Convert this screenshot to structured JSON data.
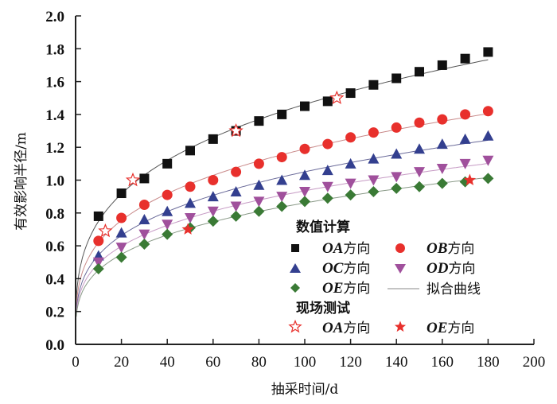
{
  "chart_data": {
    "type": "scatter",
    "title": "",
    "xlabel": "抽采时间/d",
    "ylabel": "有效影响半径/m",
    "xlim": [
      0,
      200
    ],
    "ylim": [
      0,
      2.0
    ],
    "xticks": [
      "0",
      "20",
      "40",
      "60",
      "80",
      "100",
      "120",
      "140",
      "160",
      "180",
      "200"
    ],
    "yticks": [
      "0.0",
      "0.2",
      "0.4",
      "0.6",
      "0.8",
      "1.0",
      "1.2",
      "1.4",
      "1.6",
      "1.8",
      "2.0"
    ],
    "grid": false,
    "legend_position": "bottom-right",
    "legend": {
      "group1_title": "数值计算",
      "group2_title": "现场测试",
      "fit_label": "拟合曲线"
    },
    "x": [
      10,
      20,
      30,
      40,
      50,
      60,
      70,
      80,
      90,
      100,
      110,
      120,
      130,
      140,
      150,
      160,
      170,
      180
    ],
    "series": [
      {
        "name": "OA方向",
        "name_latin": "OA",
        "name_cn": "方向",
        "marker": "square",
        "color": "#111111",
        "fit_color": "#555555",
        "values": [
          0.78,
          0.92,
          1.01,
          1.1,
          1.18,
          1.25,
          1.3,
          1.36,
          1.4,
          1.45,
          1.48,
          1.53,
          1.58,
          1.62,
          1.66,
          1.7,
          1.74,
          1.78
        ]
      },
      {
        "name": "OB方向",
        "name_latin": "OB",
        "name_cn": "方向",
        "marker": "circle",
        "color": "#e8302c",
        "fit_color": "#c98a8a",
        "values": [
          0.63,
          0.77,
          0.85,
          0.91,
          0.96,
          1.0,
          1.05,
          1.1,
          1.14,
          1.19,
          1.22,
          1.26,
          1.29,
          1.32,
          1.35,
          1.37,
          1.4,
          1.42
        ]
      },
      {
        "name": "OC方向",
        "name_latin": "OC",
        "name_cn": "方向",
        "marker": "triangle-up",
        "color": "#333f8f",
        "fit_color": "#6b6b9a",
        "values": [
          0.54,
          0.68,
          0.76,
          0.81,
          0.86,
          0.9,
          0.93,
          0.97,
          1.0,
          1.03,
          1.06,
          1.1,
          1.13,
          1.16,
          1.19,
          1.22,
          1.25,
          1.27
        ]
      },
      {
        "name": "OD方向",
        "name_latin": "OD",
        "name_cn": "方向",
        "marker": "triangle-down",
        "color": "#a0509c",
        "fit_color": "#c69ac4",
        "values": [
          0.5,
          0.59,
          0.67,
          0.73,
          0.77,
          0.81,
          0.84,
          0.87,
          0.9,
          0.93,
          0.96,
          0.98,
          1.0,
          1.02,
          1.05,
          1.07,
          1.1,
          1.12
        ]
      },
      {
        "name": "OE方向",
        "name_latin": "OE",
        "name_cn": "方向",
        "marker": "diamond",
        "color": "#3a7a35",
        "fit_color": "#8a9a88",
        "values": [
          0.46,
          0.53,
          0.61,
          0.67,
          0.71,
          0.75,
          0.78,
          0.81,
          0.84,
          0.87,
          0.89,
          0.91,
          0.93,
          0.95,
          0.96,
          0.98,
          0.99,
          1.01
        ]
      }
    ],
    "field_series": [
      {
        "name": "OA方向",
        "name_latin": "OA",
        "name_cn": "方向",
        "marker": "star-open",
        "color": "#e8302c",
        "points": [
          [
            13,
            0.69
          ],
          [
            25,
            1.0
          ],
          [
            70,
            1.3
          ],
          [
            114,
            1.5
          ]
        ]
      },
      {
        "name": "OE方向",
        "name_latin": "OE",
        "name_cn": "方向",
        "marker": "star-filled",
        "color": "#e8302c",
        "points": [
          [
            49,
            0.7
          ],
          [
            172,
            1.0
          ]
        ]
      }
    ]
  }
}
